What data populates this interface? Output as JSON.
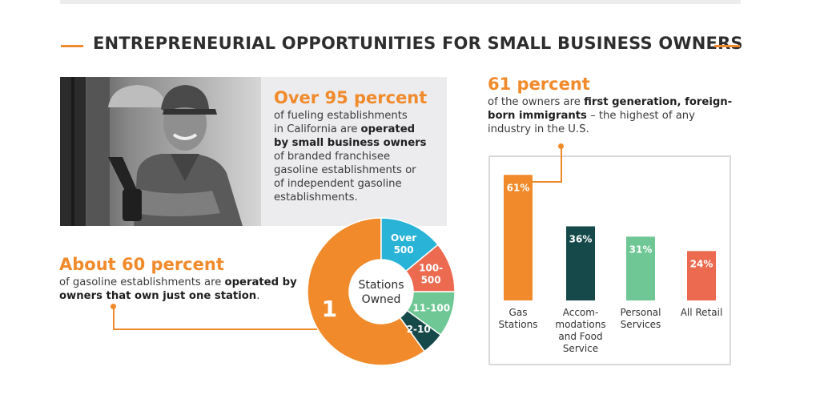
{
  "title": "ENTREPRENEURIAL OPPORTUNITIES FOR SMALL BUSINESS OWNERS",
  "colors": {
    "orange": "#f18a2a",
    "teal": "#164a4a",
    "mint": "#6fc795",
    "coral": "#ec6a50",
    "cyan": "#29b3d6",
    "dark_teal": "#164a4a",
    "green": "#6fc795"
  },
  "stat1": {
    "head_pre": "Over ",
    "head_num": "95 percent",
    "body_1": "of fueling establishments",
    "body_2a": "in California are ",
    "body_2b": "operated",
    "body_3": "by small business owners",
    "body_4": "of branded franchisee",
    "body_5": "gasoline establishments or",
    "body_6": "of independent gasoline",
    "body_7": "establishments."
  },
  "stat2": {
    "head_pre": "About ",
    "head_num": "60 percent",
    "body_1a": "of gasoline establishments are ",
    "body_1b": "operated by",
    "body_2a": "owners that own just one station",
    "body_2b": "."
  },
  "stat3": {
    "head": "61 percent",
    "body_1a": "of the owners are ",
    "body_1b": "first generation, foreign-",
    "body_2a": "born immigrants",
    "body_2b": " – the highest of any",
    "body_3": "industry in the U.S."
  },
  "chart_data": [
    {
      "type": "pie",
      "center_label": [
        "Stations",
        "Owned"
      ],
      "slices": [
        {
          "label": "1",
          "value": 60,
          "color": "#f18a2a"
        },
        {
          "label": "2-10",
          "value": 5,
          "color": "#164a4a"
        },
        {
          "label": "11-100",
          "value": 10,
          "color": "#6fc795"
        },
        {
          "label": "100-\n500",
          "value": 11,
          "color": "#ec6a50"
        },
        {
          "label": "Over\n500",
          "value": 14,
          "color": "#29b3d6"
        }
      ]
    },
    {
      "type": "bar",
      "categories": [
        "Gas\nStations",
        "Accom-\nmodations\nand Food\nService",
        "Personal\nServices",
        "All Retail"
      ],
      "values": [
        61,
        36,
        31,
        24
      ],
      "value_labels": [
        "61%",
        "36%",
        "31%",
        "24%"
      ],
      "colors": [
        "#f18a2a",
        "#164a4a",
        "#6fc795",
        "#ec6a50"
      ],
      "ylim": [
        0,
        65
      ]
    }
  ]
}
